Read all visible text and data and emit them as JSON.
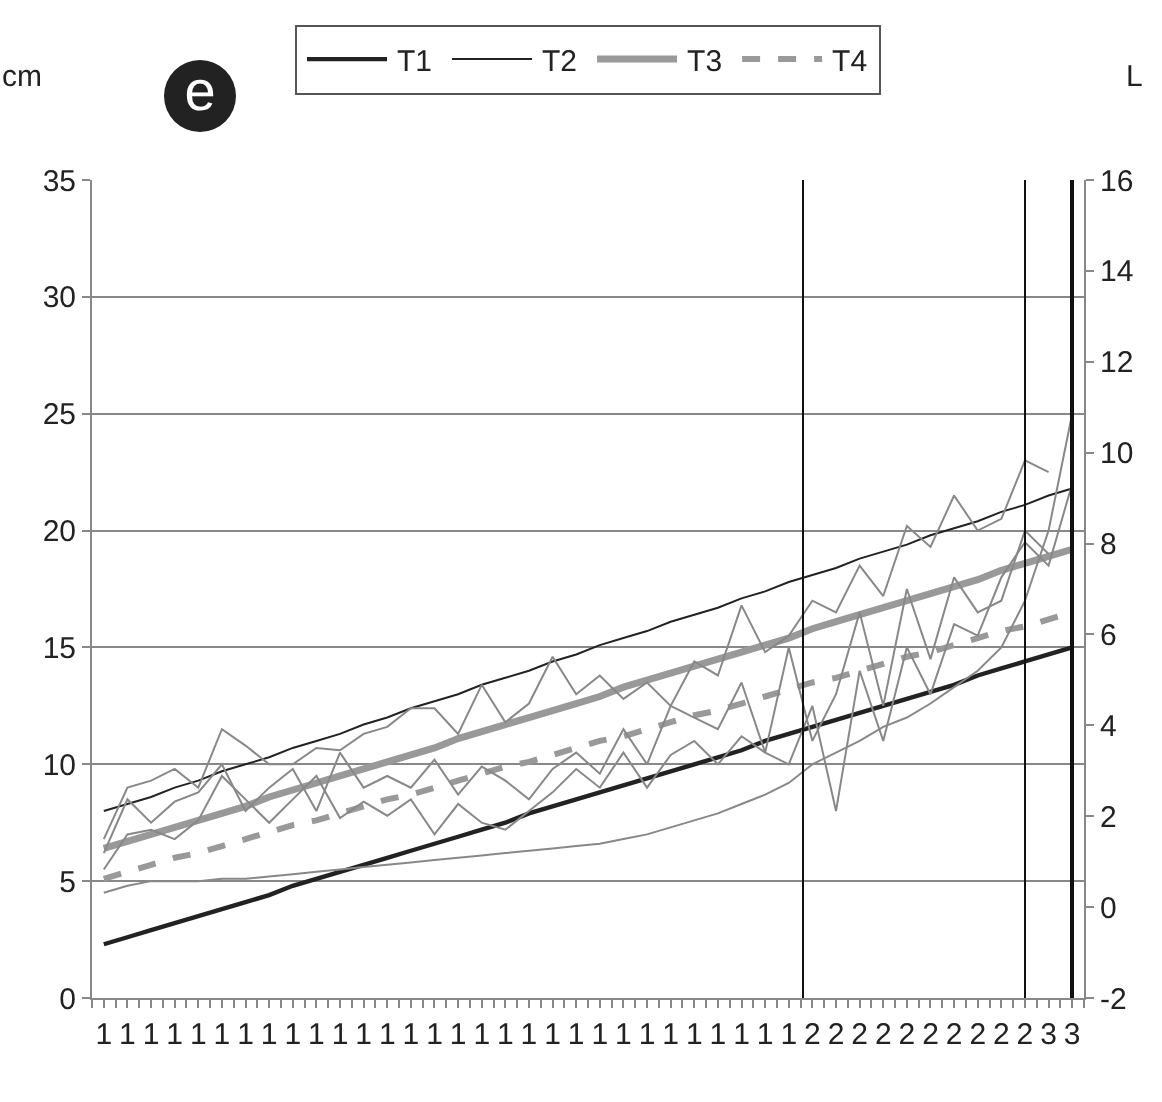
{
  "chart_data": {
    "type": "line",
    "ylabel": "cm",
    "y2label": "L",
    "annotations": [
      "e"
    ],
    "categories": [
      "1",
      "1",
      "1",
      "1",
      "1",
      "1",
      "1",
      "1",
      "1",
      "1",
      "1",
      "1",
      "1",
      "1",
      "1",
      "1",
      "1",
      "1",
      "1",
      "1",
      "1",
      "1",
      "1",
      "1",
      "1",
      "1",
      "1",
      "1",
      "1",
      "1",
      "2",
      "2",
      "2",
      "2",
      "2",
      "2",
      "2",
      "2",
      "2",
      "2",
      "3",
      "3"
    ],
    "series": [
      {
        "name": "T1",
        "color": "#222222",
        "values": [
          2.3,
          2.6,
          2.9,
          3.2,
          3.5,
          3.8,
          4.1,
          4.4,
          4.8,
          5.1,
          5.4,
          5.7,
          6.0,
          6.3,
          6.6,
          6.9,
          7.2,
          7.5,
          7.9,
          8.2,
          8.5,
          8.8,
          9.1,
          9.4,
          9.7,
          10.0,
          10.3,
          10.6,
          11.0,
          11.3,
          11.6,
          11.9,
          12.2,
          12.5,
          12.8,
          13.1,
          13.4,
          13.8,
          14.1,
          14.4,
          14.7,
          15.0
        ]
      },
      {
        "name": "T2",
        "color": "#222222",
        "values": [
          8.0,
          8.3,
          8.6,
          9.0,
          9.3,
          9.7,
          10.0,
          10.3,
          10.7,
          11.0,
          11.3,
          11.7,
          12.0,
          12.4,
          12.7,
          13.0,
          13.4,
          13.7,
          14.0,
          14.4,
          14.7,
          15.1,
          15.4,
          15.7,
          16.1,
          16.4,
          16.7,
          17.1,
          17.4,
          17.8,
          18.1,
          18.4,
          18.8,
          19.1,
          19.4,
          19.8,
          20.1,
          20.4,
          20.8,
          21.1,
          21.5,
          21.8
        ]
      },
      {
        "name": "T3",
        "color": "#999999",
        "values": [
          6.4,
          6.7,
          7.0,
          7.3,
          7.6,
          7.9,
          8.2,
          8.6,
          8.9,
          9.2,
          9.5,
          9.8,
          10.1,
          10.4,
          10.7,
          11.1,
          11.4,
          11.7,
          12.0,
          12.3,
          12.6,
          12.9,
          13.3,
          13.6,
          13.9,
          14.2,
          14.5,
          14.8,
          15.1,
          15.4,
          15.8,
          16.1,
          16.4,
          16.7,
          17.0,
          17.3,
          17.6,
          17.9,
          18.3,
          18.6,
          18.9,
          19.2
        ]
      },
      {
        "name": "T4",
        "color": "#999999",
        "line_style": "dashed",
        "values": [
          5.1,
          5.4,
          5.7,
          6.0,
          6.2,
          6.5,
          6.8,
          7.1,
          7.4,
          7.6,
          7.9,
          8.2,
          8.5,
          8.7,
          9.0,
          9.3,
          9.6,
          9.9,
          10.1,
          10.4,
          10.7,
          11.0,
          11.2,
          11.5,
          11.8,
          12.1,
          12.3,
          12.6,
          12.9,
          13.2,
          13.5,
          13.7,
          14.0,
          14.3,
          14.6,
          14.8,
          15.1,
          15.4,
          15.7,
          15.9,
          16.2,
          16.5
        ]
      },
      {
        "color": "#888888",
        "values": [
          6.8,
          9.0,
          9.3,
          9.8,
          9.0,
          11.5,
          10.8,
          10.0,
          10.0,
          10.7,
          10.6,
          11.3,
          11.6,
          12.4,
          12.4,
          11.3,
          13.4,
          11.8,
          12.6,
          14.6,
          13.0,
          13.8,
          12.8,
          13.5,
          12.5,
          14.4,
          13.8,
          16.8,
          14.8,
          15.5,
          17.0,
          16.5,
          18.5,
          17.2,
          20.2,
          19.3,
          21.5,
          20.0,
          20.5,
          23.0,
          22.5,
          null
        ]
      },
      {
        "color": "#888888",
        "values": [
          6.2,
          8.5,
          7.5,
          8.4,
          8.8,
          10.0,
          8.0,
          9.0,
          9.8,
          8.0,
          10.5,
          9.0,
          9.5,
          9.0,
          10.2,
          8.7,
          9.9,
          9.3,
          8.5,
          9.8,
          10.5,
          9.6,
          11.5,
          10.0,
          12.5,
          12.0,
          11.5,
          13.5,
          10.5,
          15.0,
          11.0,
          13.0,
          16.5,
          12.5,
          17.5,
          14.5,
          18.0,
          16.5,
          17.0,
          20.0,
          19.0,
          null
        ]
      },
      {
        "color": "#888888",
        "values": [
          5.5,
          7.0,
          7.2,
          6.8,
          7.6,
          9.5,
          8.5,
          7.5,
          8.5,
          9.5,
          7.7,
          8.4,
          7.8,
          8.5,
          7.0,
          8.3,
          7.5,
          7.2,
          8.0,
          8.8,
          9.8,
          9.0,
          10.5,
          9.0,
          10.4,
          11.0,
          10.0,
          11.2,
          10.5,
          10.0,
          12.5,
          8.0,
          14.0,
          11.0,
          15.0,
          13.0,
          16.0,
          15.5,
          18.0,
          19.5,
          18.5,
          22.0
        ]
      },
      {
        "color": "#888888",
        "values": [
          4.5,
          4.8,
          5.0,
          5.0,
          5.0,
          5.1,
          5.1,
          5.2,
          5.3,
          5.4,
          5.5,
          5.6,
          5.7,
          5.8,
          5.9,
          6.0,
          6.1,
          6.2,
          6.3,
          6.4,
          6.5,
          6.6,
          6.8,
          7.0,
          7.3,
          7.6,
          7.9,
          8.3,
          8.7,
          9.2,
          10.0,
          10.5,
          11.0,
          11.6,
          12.0,
          12.6,
          13.3,
          14.0,
          15.0,
          17.0,
          20.0,
          25.0
        ]
      }
    ],
    "ylim": [
      0,
      35
    ],
    "yticks": [
      0,
      5,
      10,
      15,
      20,
      25,
      30,
      35
    ],
    "y2lim": [
      -2,
      16
    ],
    "y2ticks": [
      -2,
      0,
      2,
      4,
      6,
      8,
      10,
      12,
      14,
      16
    ],
    "grid": "y",
    "legend": "top",
    "line_style": "solid",
    "marker": "none"
  }
}
